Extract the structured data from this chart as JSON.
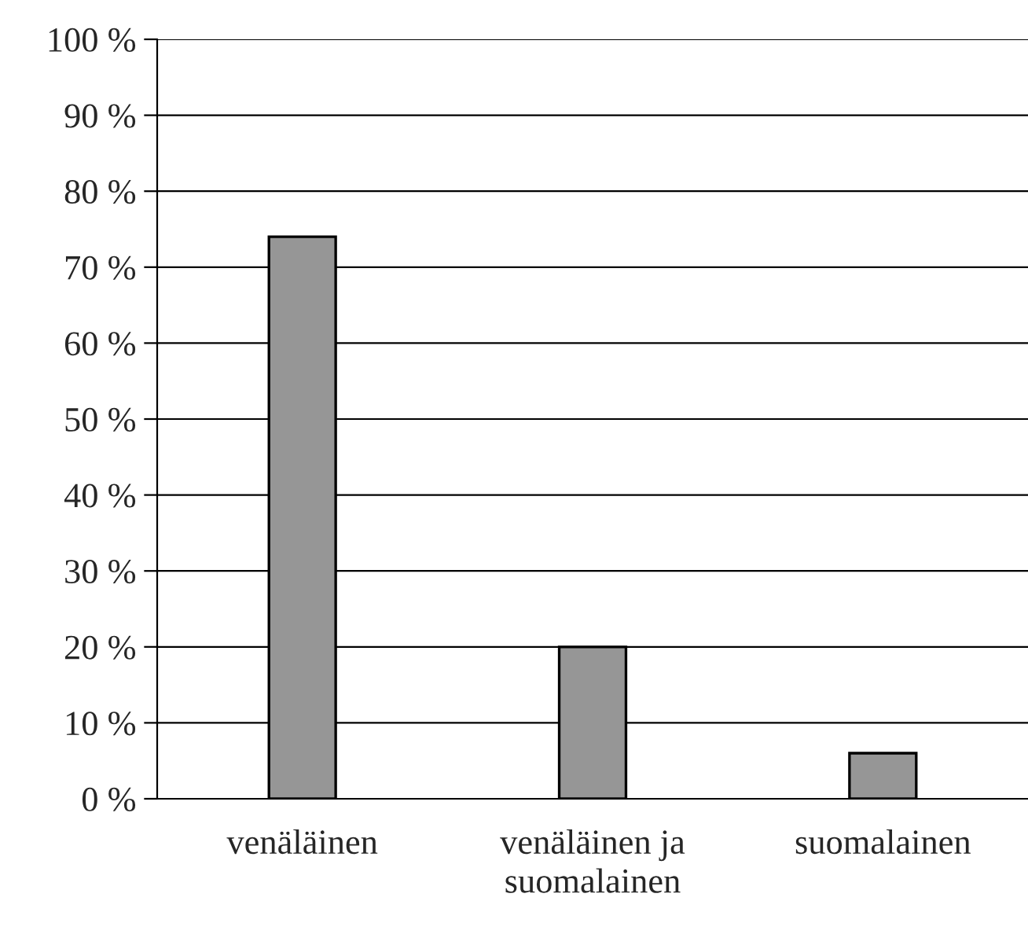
{
  "chart_data": {
    "type": "bar",
    "categories": [
      "venäläinen",
      "venäläinen ja\nsuomalainen",
      "suomalainen"
    ],
    "values": [
      74,
      20,
      6
    ],
    "color": "#969696",
    "ylim": [
      0,
      100
    ],
    "yticks": [
      {
        "value": 0,
        "label": "0 %"
      },
      {
        "value": 10,
        "label": "10 %"
      },
      {
        "value": 20,
        "label": "20 %"
      },
      {
        "value": 30,
        "label": "30 %"
      },
      {
        "value": 40,
        "label": "40 %"
      },
      {
        "value": 50,
        "label": "50 %"
      },
      {
        "value": 60,
        "label": "60 %"
      },
      {
        "value": 70,
        "label": "70 %"
      },
      {
        "value": 80,
        "label": "80 %"
      },
      {
        "value": 90,
        "label": "90 %"
      },
      {
        "value": 100,
        "label": "100 %"
      }
    ],
    "grid": "y"
  }
}
